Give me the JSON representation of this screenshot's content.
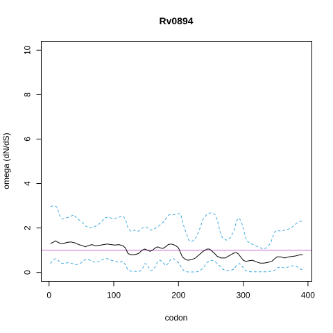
{
  "chart_data": {
    "type": "line",
    "title": "Rv0894",
    "xlabel": "codon",
    "ylabel": "omega (dN/dS)",
    "xlim": [
      -12,
      406
    ],
    "ylim": [
      -0.4,
      10.4
    ],
    "x_ticks": [
      0,
      100,
      200,
      300,
      400
    ],
    "y_ticks": [
      0,
      2,
      4,
      6,
      8,
      10
    ],
    "grid": false,
    "reference_line": {
      "y": 1,
      "color": "#cc66cc"
    },
    "series": [
      {
        "role": "estimate",
        "color": "#000000",
        "dash": "solid",
        "x": [
          2,
          6,
          10,
          14,
          18,
          22,
          28,
          34,
          40,
          46,
          52,
          56,
          60,
          66,
          72,
          78,
          84,
          90,
          96,
          102,
          108,
          114,
          118,
          122,
          126,
          132,
          138,
          144,
          148,
          152,
          156,
          160,
          164,
          168,
          172,
          176,
          180,
          184,
          188,
          192,
          196,
          200,
          203,
          206,
          210,
          214,
          220,
          226,
          232,
          238,
          244,
          248,
          252,
          256,
          260,
          266,
          272,
          278,
          284,
          288,
          292,
          296,
          300,
          304,
          308,
          314,
          320,
          326,
          332,
          338,
          344,
          348,
          352,
          358,
          364,
          370,
          376,
          382,
          388,
          392
        ],
        "y": [
          1.3,
          1.35,
          1.42,
          1.35,
          1.3,
          1.3,
          1.35,
          1.37,
          1.33,
          1.25,
          1.2,
          1.15,
          1.2,
          1.25,
          1.2,
          1.22,
          1.25,
          1.28,
          1.25,
          1.23,
          1.25,
          1.2,
          1.1,
          0.85,
          0.8,
          0.8,
          0.85,
          1.0,
          1.05,
          1.0,
          0.95,
          1.0,
          1.1,
          1.15,
          1.1,
          1.08,
          1.15,
          1.25,
          1.28,
          1.25,
          1.2,
          1.1,
          0.9,
          0.7,
          0.6,
          0.55,
          0.57,
          0.65,
          0.8,
          0.95,
          1.05,
          1.05,
          0.95,
          0.85,
          0.72,
          0.65,
          0.65,
          0.75,
          0.85,
          0.9,
          0.85,
          0.7,
          0.55,
          0.5,
          0.52,
          0.55,
          0.48,
          0.42,
          0.42,
          0.45,
          0.5,
          0.6,
          0.7,
          0.7,
          0.65,
          0.7,
          0.72,
          0.75,
          0.8,
          0.8
        ]
      },
      {
        "role": "upper bound",
        "color": "#3fa9e0",
        "dash": "dashed",
        "x": [
          2,
          8,
          12,
          16,
          20,
          26,
          32,
          38,
          44,
          50,
          56,
          62,
          68,
          74,
          80,
          86,
          92,
          98,
          104,
          110,
          114,
          118,
          122,
          126,
          132,
          138,
          144,
          150,
          156,
          162,
          168,
          174,
          178,
          182,
          186,
          190,
          194,
          198,
          202,
          204,
          208,
          212,
          216,
          220,
          226,
          232,
          238,
          244,
          250,
          256,
          260,
          264,
          268,
          274,
          280,
          286,
          290,
          294,
          298,
          302,
          306,
          312,
          318,
          324,
          330,
          336,
          342,
          348,
          352,
          358,
          364,
          370,
          376,
          382,
          388,
          392
        ],
        "y": [
          2.97,
          3.0,
          2.95,
          2.6,
          2.4,
          2.45,
          2.5,
          2.6,
          2.4,
          2.3,
          2.1,
          2.0,
          2.05,
          2.1,
          2.25,
          2.45,
          2.5,
          2.42,
          2.45,
          2.5,
          2.55,
          2.4,
          2.0,
          1.85,
          1.9,
          1.85,
          2.0,
          2.05,
          1.9,
          1.95,
          2.05,
          2.2,
          2.3,
          2.5,
          2.6,
          2.6,
          2.6,
          2.62,
          2.65,
          2.55,
          2.1,
          1.75,
          1.45,
          1.38,
          1.5,
          1.9,
          2.4,
          2.62,
          2.68,
          2.62,
          2.35,
          1.85,
          1.55,
          1.45,
          1.55,
          1.9,
          2.35,
          2.45,
          2.2,
          1.75,
          1.4,
          1.3,
          1.2,
          1.15,
          1.05,
          1.1,
          1.3,
          1.8,
          1.9,
          1.85,
          1.9,
          1.95,
          2.05,
          2.2,
          2.3,
          2.3
        ]
      },
      {
        "role": "lower bound",
        "color": "#3fa9e0",
        "dash": "dashed",
        "x": [
          2,
          6,
          10,
          14,
          18,
          24,
          30,
          36,
          42,
          48,
          54,
          60,
          66,
          72,
          78,
          84,
          90,
          96,
          102,
          108,
          114,
          118,
          122,
          128,
          134,
          140,
          144,
          148,
          152,
          156,
          160,
          164,
          168,
          172,
          176,
          180,
          184,
          188,
          192,
          196,
          200,
          204,
          208,
          214,
          220,
          226,
          232,
          238,
          244,
          250,
          256,
          262,
          268,
          274,
          280,
          286,
          290,
          294,
          298,
          302,
          306,
          312,
          318,
          324,
          330,
          336,
          342,
          348,
          352,
          358,
          364,
          370,
          376,
          382,
          388,
          392
        ],
        "y": [
          0.4,
          0.55,
          0.62,
          0.55,
          0.42,
          0.4,
          0.45,
          0.4,
          0.35,
          0.4,
          0.55,
          0.6,
          0.5,
          0.45,
          0.5,
          0.6,
          0.62,
          0.55,
          0.5,
          0.45,
          0.5,
          0.35,
          0.1,
          0.05,
          0.05,
          0.05,
          0.15,
          0.4,
          0.35,
          0.1,
          0.1,
          0.25,
          0.5,
          0.55,
          0.45,
          0.3,
          0.4,
          0.6,
          0.62,
          0.55,
          0.45,
          0.25,
          0.08,
          0.02,
          0.02,
          0.02,
          0.05,
          0.2,
          0.45,
          0.55,
          0.5,
          0.35,
          0.15,
          0.08,
          0.08,
          0.15,
          0.35,
          0.4,
          0.3,
          0.12,
          0.05,
          0.03,
          0.03,
          0.03,
          0.03,
          0.03,
          0.05,
          0.08,
          0.2,
          0.25,
          0.2,
          0.25,
          0.3,
          0.28,
          0.15,
          0.12
        ]
      }
    ]
  }
}
